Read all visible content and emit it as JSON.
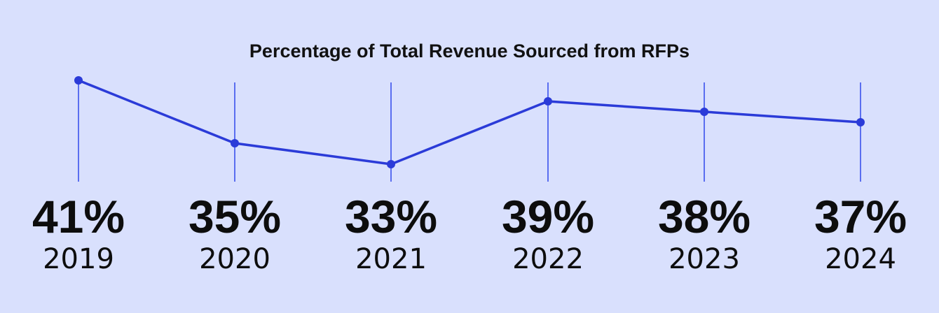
{
  "chart_data": {
    "type": "line",
    "title": "Percentage of Total Revenue Sourced from RFPs",
    "categories": [
      "2019",
      "2020",
      "2021",
      "2022",
      "2023",
      "2024"
    ],
    "values": [
      41,
      35,
      33,
      39,
      38,
      37
    ],
    "value_labels": [
      "41%",
      "35%",
      "33%",
      "39%",
      "38%",
      "37%"
    ],
    "ylim": [
      32,
      42
    ],
    "grid": false,
    "legend": "none",
    "colors": {
      "line": "#2b3bd8",
      "drop_line": "#5a6ef0",
      "background": "#d9e0fd",
      "text": "#0d0d0d"
    }
  }
}
